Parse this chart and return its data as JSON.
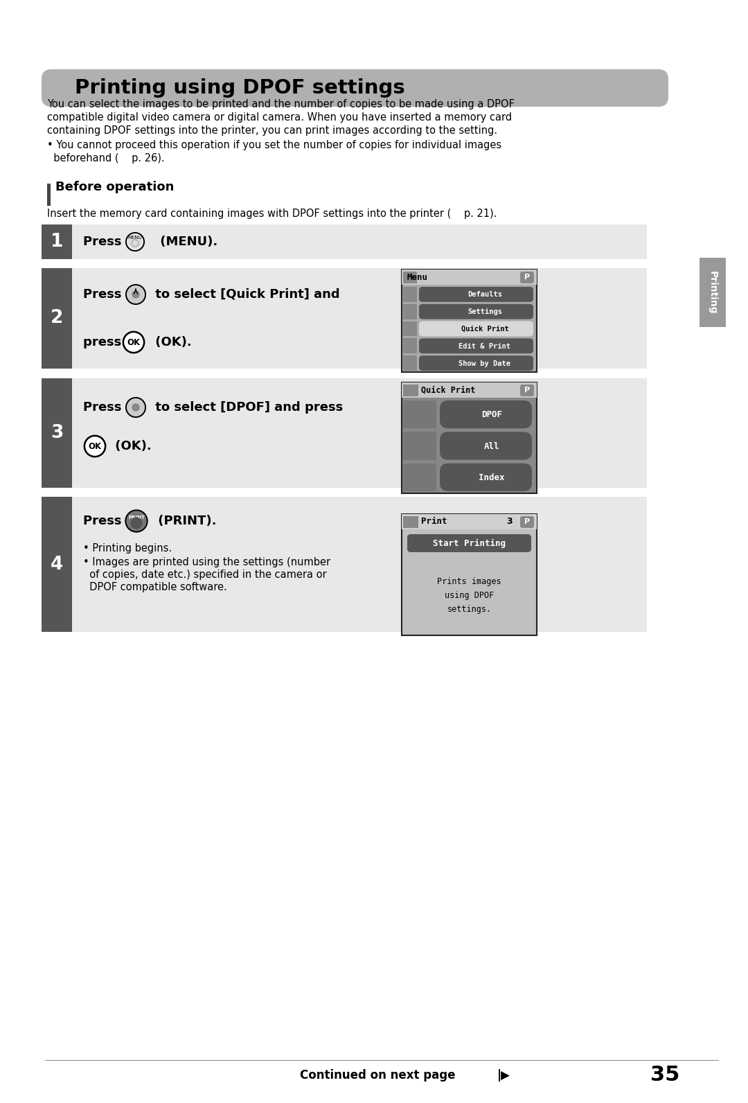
{
  "title": "Printing using DPOF settings",
  "intro_line1": "You can select the images to be printed and the number of copies to be made using a DPOF",
  "intro_line2": "compatible digital video camera or digital camera. When you have inserted a memory card",
  "intro_line3": "containing DPOF settings into the printer, you can print images according to the setting.",
  "bullet_line1": "• You cannot proceed this operation if you set the number of copies for individual images",
  "bullet_line2": "  beforehand (    p. 26).",
  "before_op_title": "Before operation",
  "before_op_text": "Insert the memory card containing images with DPOF settings into the printer (    p. 21).",
  "step1_text": "Press      (MENU).",
  "step2_line1": "Press      to select [Quick Print] and",
  "step2_line2": "press      (OK).",
  "step3_line1": "Press      to select [DPOF] and press",
  "step3_line2": "     (OK).",
  "step4_line1": "Press       (PRINT).",
  "step4_bullet1": "• Printing begins.",
  "step4_bullet2": "• Images are printed using the settings (number",
  "step4_bullet3": "  of copies, date etc.) specified in the camera or",
  "step4_bullet4": "  DPOF compatible software.",
  "menu_items": [
    "Show by Date",
    "Edit & Print",
    "Quick Print",
    "Settings",
    "Defaults"
  ],
  "menu_highlighted": 2,
  "qp_items": [
    "Index",
    "All",
    "DPOF"
  ],
  "qp_highlighted": 2,
  "print_button_text": "Start Printing",
  "print_body_text": "Prints images\nusing DPOF\nsettings.",
  "side_tab_text": "Printing",
  "continued_text": "Continued on next page",
  "page_number": "35",
  "title_bg_color": "#b0b0b0",
  "step_num_bg": "#555555",
  "step_content_bg": "#e8e8e8",
  "screen_outer_bg": "#c8c8c8",
  "screen_title_bg": "#d4d4d4",
  "menu_dark": "#555555",
  "menu_light": "#d8d8d8",
  "side_tab_color": "#999999"
}
